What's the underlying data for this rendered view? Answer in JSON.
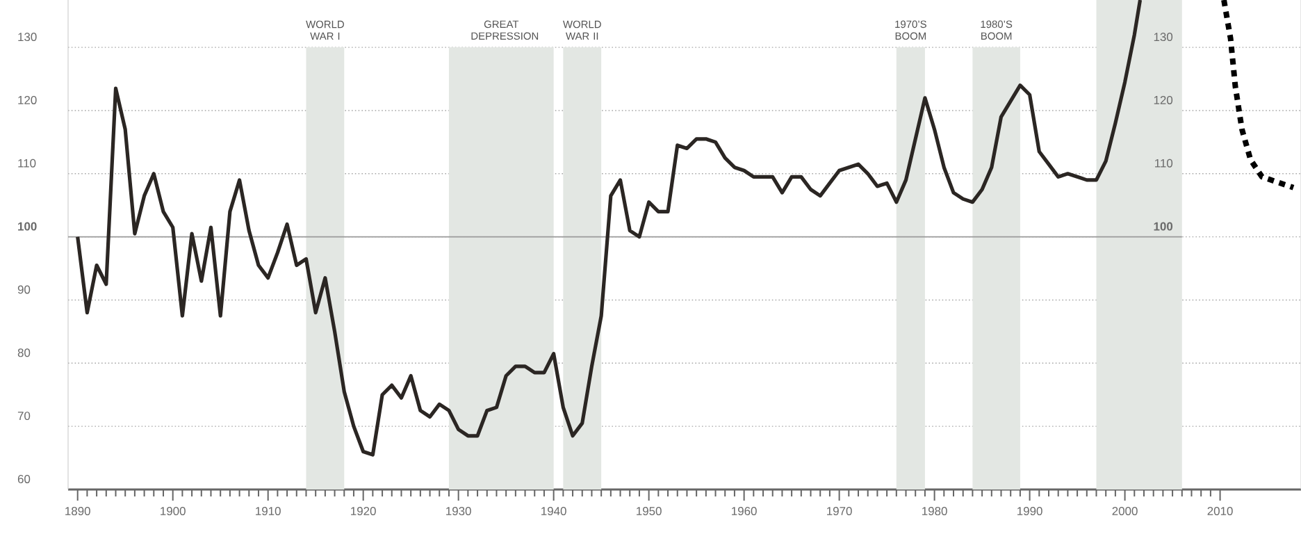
{
  "chart_data": {
    "type": "line",
    "xlim": [
      1889,
      2018.5
    ],
    "ylim": [
      60,
      137.5
    ],
    "y2lim": [
      60,
      137.5
    ],
    "xticks": [
      1890,
      1900,
      1910,
      1920,
      1930,
      1940,
      1950,
      1960,
      1970,
      1980,
      1990,
      2000,
      2010
    ],
    "yticks": [
      60,
      70,
      80,
      90,
      100,
      110,
      120,
      130
    ],
    "y2ticks": [
      100,
      110,
      120,
      130
    ],
    "grid": "y",
    "marker": "none",
    "line_style": "solid",
    "ref_lines": [
      {
        "axis": "y",
        "value": 100,
        "color": "#9a9a9a"
      }
    ],
    "bands": [
      {
        "axis": "x",
        "from": 1914,
        "to": 1918,
        "label": "WORLD WAR I",
        "color": "#e3e7e3"
      },
      {
        "axis": "x",
        "from": 1929,
        "to": 1940,
        "label": "GREAT DEPRESSION",
        "color": "#e3e7e3"
      },
      {
        "axis": "x",
        "from": 1941,
        "to": 1945,
        "label": "WORLD WAR II",
        "color": "#e3e7e3"
      },
      {
        "axis": "x",
        "from": 1976,
        "to": 1979,
        "label": "1970’S BOOM",
        "color": "#e3e7e3"
      },
      {
        "axis": "x",
        "from": 1984,
        "to": 1989,
        "label": "1980’S BOOM",
        "color": "#e3e7e3"
      },
      {
        "axis": "x",
        "from": 1997,
        "to": 2006,
        "color": "#e3e7e3"
      }
    ],
    "series": [
      {
        "color": "#2b2623",
        "x": [
          1890,
          1891,
          1892,
          1893,
          1894,
          1895,
          1896,
          1897,
          1898,
          1899,
          1900,
          1901,
          1902,
          1903,
          1904,
          1905,
          1906,
          1907,
          1908,
          1909,
          1910,
          1911,
          1912,
          1913,
          1914,
          1915,
          1916,
          1917,
          1918,
          1919,
          1920,
          1921,
          1922,
          1923,
          1924,
          1925,
          1926,
          1927,
          1928,
          1929,
          1930,
          1931,
          1932,
          1933,
          1934,
          1935,
          1936,
          1937,
          1938,
          1939,
          1940,
          1941,
          1942,
          1943,
          1944,
          1945,
          1946,
          1947,
          1948,
          1949,
          1950,
          1951,
          1952,
          1953,
          1954,
          1955,
          1956,
          1957,
          1958,
          1959,
          1960,
          1961,
          1962,
          1963,
          1964,
          1965,
          1966,
          1967,
          1968,
          1969,
          1970,
          1971,
          1972,
          1973,
          1974,
          1975,
          1976,
          1977,
          1978,
          1979,
          1980,
          1981,
          1982,
          1983,
          1984,
          1985,
          1986,
          1987,
          1988,
          1989,
          1990,
          1991,
          1992,
          1993,
          1994,
          1995,
          1996,
          1997,
          1998,
          1999,
          2000,
          2001,
          2001.6
        ],
        "values": [
          100,
          88,
          95.5,
          92.5,
          123.5,
          117,
          100.5,
          106.5,
          110,
          104,
          101.5,
          87.5,
          100.5,
          93,
          101.5,
          87.5,
          104,
          109,
          101,
          95.5,
          93.5,
          97.5,
          102,
          95.5,
          96.5,
          88,
          93.5,
          85,
          75.5,
          70,
          66,
          65.5,
          75,
          76.5,
          74.5,
          78,
          72.5,
          71.5,
          73.5,
          72.5,
          69.5,
          68.5,
          68.5,
          72.5,
          73,
          78,
          79.5,
          79.5,
          78.5,
          78.5,
          81.5,
          73,
          68.5,
          70.5,
          79.5,
          87.5,
          106.5,
          109,
          101,
          100,
          105.5,
          104,
          104,
          114.5,
          114,
          115.5,
          115.5,
          115,
          112.5,
          111,
          110.5,
          109.5,
          109.5,
          109.5,
          107,
          109.5,
          109.5,
          107.5,
          106.5,
          108.5,
          110.5,
          111,
          111.5,
          110,
          108,
          108.5,
          105.5,
          109,
          115.5,
          122,
          117,
          111,
          107,
          106,
          105.5,
          107.5,
          111,
          119,
          121.5,
          124,
          122.5,
          113.5,
          111.5,
          109.5,
          110,
          109.5,
          109,
          109,
          112,
          118,
          124.5,
          132,
          137.5
        ]
      },
      {
        "color": "#000000",
        "line_style": "dotted",
        "x": [
          2010.4,
          2011.1,
          2011.6,
          2012.3,
          2013.2,
          2014.4,
          2017.7
        ],
        "values": [
          137.5,
          131.4,
          123.8,
          117,
          112.2,
          109.5,
          107.8
        ]
      }
    ]
  }
}
